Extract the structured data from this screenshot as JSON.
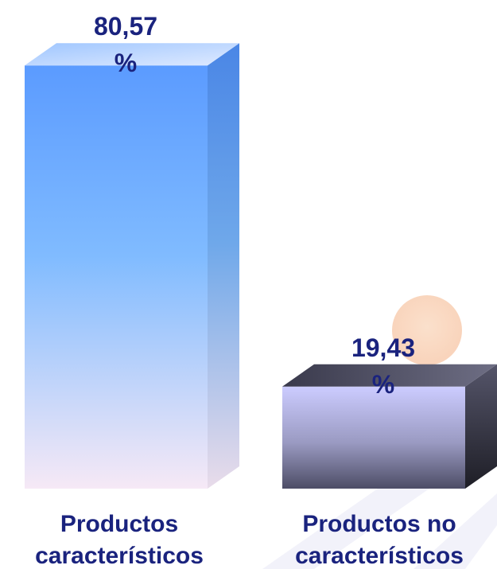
{
  "chart_data": {
    "type": "bar",
    "categories": [
      "Productos característicos",
      "Productos no característicos"
    ],
    "category_lines": [
      [
        "Productos",
        "característicos"
      ],
      [
        "Productos no",
        "característicos"
      ]
    ],
    "values": [
      80.57,
      19.43
    ],
    "data_labels": [
      [
        "80,57",
        "%"
      ],
      [
        "19,43",
        "%"
      ]
    ],
    "unit": "%",
    "ylim": [
      0,
      100
    ],
    "grid": false,
    "legend": "none",
    "style": "3d-column"
  },
  "colors": {
    "bar1_top": "#5b9bff",
    "bar1_bottom": "#f6e9f6",
    "bar2_top": "#ccccff",
    "bar2_bottom": "#4d4d66",
    "label_text": "#1a237e",
    "watermark": "#f4b185"
  }
}
